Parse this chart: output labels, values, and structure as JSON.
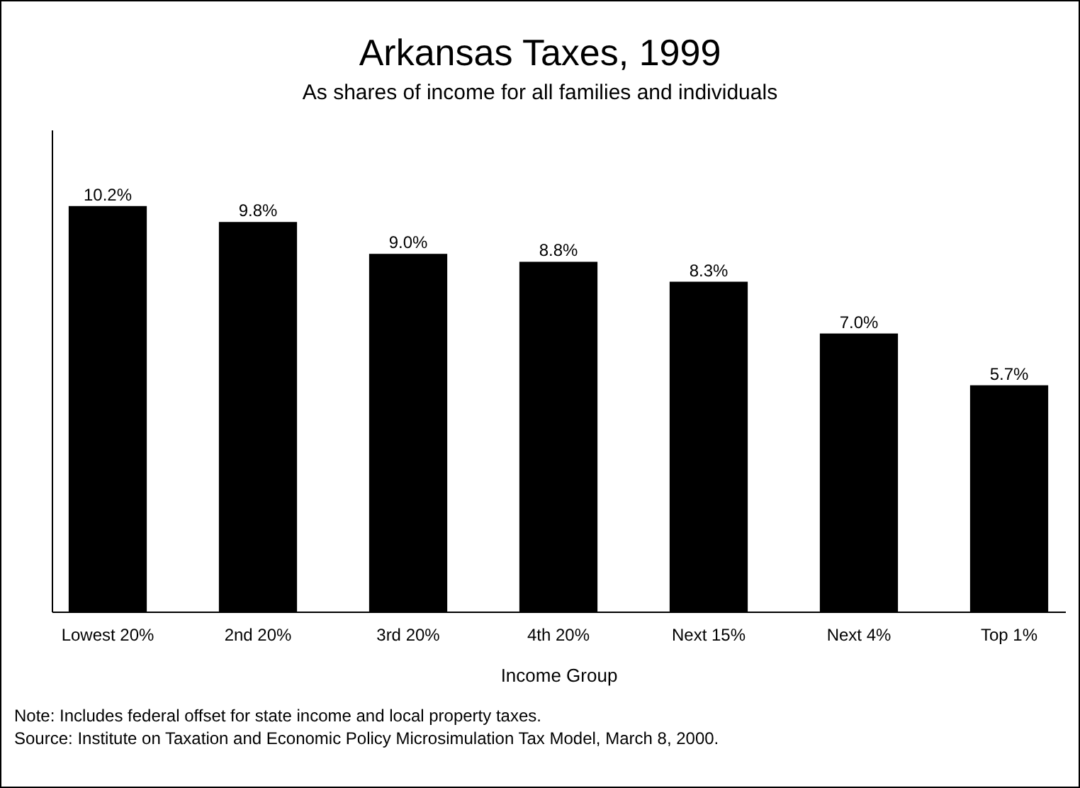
{
  "chart_data": {
    "type": "bar",
    "title": "Arkansas Taxes, 1999",
    "subtitle": "As shares of income for all families and individuals",
    "xlabel": "Income Group",
    "categories": [
      "Lowest 20%",
      "2nd 20%",
      "3rd 20%",
      "4th 20%",
      "Next 15%",
      "Next 4%",
      "Top 1%"
    ],
    "values": [
      10.2,
      9.8,
      9.0,
      8.8,
      8.3,
      7.0,
      5.7
    ],
    "value_labels": [
      "10.2%",
      "9.8%",
      "9.0%",
      "8.8%",
      "8.3%",
      "7.0%",
      "5.7%"
    ],
    "color": "#000000",
    "ylim": [
      0,
      12.1
    ],
    "tick_labels": "x",
    "annotations": [
      "Note: Includes federal offset for state income and local property taxes.",
      "Source: Institute on Taxation and Economic Policy Microsimulation Tax Model, March 8, 2000."
    ]
  }
}
